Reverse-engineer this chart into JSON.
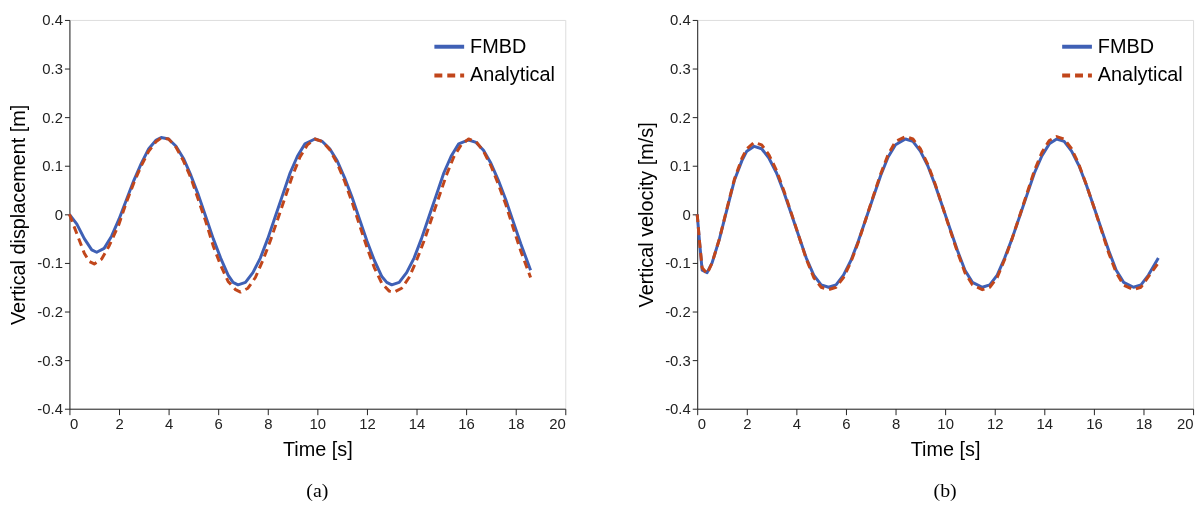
{
  "chart_data": [
    {
      "type": "line",
      "xlabel": "Time [s]",
      "ylabel": "Vertical displacement [m]",
      "xlim": [
        0,
        20
      ],
      "xticks": [
        0,
        2,
        4,
        6,
        8,
        10,
        12,
        14,
        16,
        18,
        20
      ],
      "ylim": [
        -0.4,
        0.4
      ],
      "yticks": [
        -0.4,
        -0.3,
        -0.2,
        -0.1,
        0,
        0.1,
        0.2,
        0.3,
        0.4
      ],
      "legend": "top right",
      "grid": false,
      "annotations": [
        "(a)"
      ],
      "series": [
        {
          "name": "FMBD",
          "color": "#3f60b5",
          "line_style": "solid",
          "x": [
            0,
            0.3,
            0.6,
            0.9,
            1.1,
            1.4,
            1.7,
            2.0,
            2.3,
            2.6,
            2.9,
            3.2,
            3.5,
            3.7,
            4.0,
            4.3,
            4.6,
            4.9,
            5.2,
            5.5,
            5.8,
            6.1,
            6.4,
            6.6,
            6.8,
            7.1,
            7.4,
            7.7,
            8.0,
            8.3,
            8.6,
            8.9,
            9.2,
            9.5,
            9.9,
            10.2,
            10.5,
            10.8,
            11.1,
            11.4,
            11.7,
            12.0,
            12.3,
            12.6,
            12.8,
            13.0,
            13.3,
            13.6,
            13.9,
            14.2,
            14.5,
            14.8,
            15.1,
            15.4,
            15.7,
            16.1,
            16.4,
            16.7,
            17.0,
            17.3,
            17.6,
            17.9,
            18.2,
            18.6
          ],
          "values": [
            0,
            -0.02,
            -0.05,
            -0.073,
            -0.078,
            -0.07,
            -0.045,
            -0.01,
            0.03,
            0.07,
            0.105,
            0.135,
            0.153,
            0.158,
            0.155,
            0.14,
            0.115,
            0.08,
            0.04,
            -0.005,
            -0.05,
            -0.09,
            -0.125,
            -0.14,
            -0.145,
            -0.14,
            -0.12,
            -0.09,
            -0.05,
            -0.005,
            0.04,
            0.085,
            0.12,
            0.145,
            0.155,
            0.15,
            0.135,
            0.11,
            0.075,
            0.035,
            -0.01,
            -0.055,
            -0.095,
            -0.128,
            -0.14,
            -0.145,
            -0.14,
            -0.12,
            -0.09,
            -0.05,
            -0.005,
            0.04,
            0.085,
            0.12,
            0.145,
            0.153,
            0.148,
            0.132,
            0.105,
            0.07,
            0.03,
            -0.015,
            -0.06,
            -0.115
          ]
        },
        {
          "name": "Analytical",
          "color": "#c1461b",
          "line_style": "dashed",
          "x": [
            0,
            0.3,
            0.6,
            0.8,
            1.0,
            1.3,
            1.6,
            2.0,
            2.3,
            2.6,
            2.9,
            3.2,
            3.5,
            3.7,
            4.0,
            4.3,
            4.6,
            4.9,
            5.2,
            5.5,
            5.8,
            6.1,
            6.4,
            6.7,
            6.9,
            7.2,
            7.5,
            7.8,
            8.1,
            8.4,
            8.7,
            9.0,
            9.3,
            9.6,
            9.9,
            10.2,
            10.5,
            10.8,
            11.1,
            11.4,
            11.7,
            12.0,
            12.3,
            12.6,
            12.9,
            13.1,
            13.4,
            13.7,
            14.0,
            14.3,
            14.6,
            14.9,
            15.2,
            15.5,
            15.8,
            16.1,
            16.4,
            16.7,
            17.0,
            17.3,
            17.6,
            17.9,
            18.2,
            18.6
          ],
          "values": [
            0,
            -0.04,
            -0.08,
            -0.097,
            -0.102,
            -0.092,
            -0.065,
            -0.02,
            0.025,
            0.065,
            0.1,
            0.13,
            0.15,
            0.157,
            0.155,
            0.138,
            0.11,
            0.075,
            0.03,
            -0.015,
            -0.065,
            -0.105,
            -0.138,
            -0.155,
            -0.16,
            -0.152,
            -0.13,
            -0.095,
            -0.055,
            -0.01,
            0.035,
            0.08,
            0.118,
            0.143,
            0.155,
            0.15,
            0.133,
            0.105,
            0.068,
            0.025,
            -0.022,
            -0.068,
            -0.11,
            -0.142,
            -0.158,
            -0.16,
            -0.152,
            -0.13,
            -0.095,
            -0.055,
            -0.01,
            0.035,
            0.08,
            0.118,
            0.143,
            0.155,
            0.15,
            0.13,
            0.1,
            0.062,
            0.02,
            -0.028,
            -0.075,
            -0.13
          ]
        }
      ]
    },
    {
      "type": "line",
      "xlabel": "Time [s]",
      "ylabel": "Vertical velocity [m/s]",
      "xlim": [
        0,
        20
      ],
      "xticks": [
        0,
        2,
        4,
        6,
        8,
        10,
        12,
        14,
        16,
        18,
        20
      ],
      "ylim": [
        -0.4,
        0.4
      ],
      "yticks": [
        -0.4,
        -0.3,
        -0.2,
        -0.1,
        0,
        0.1,
        0.2,
        0.3,
        0.4
      ],
      "legend": "top right",
      "grid": false,
      "annotations": [
        "(b)"
      ],
      "series": [
        {
          "name": "FMBD",
          "color": "#3f60b5",
          "line_style": "solid",
          "x": [
            0,
            0.1,
            0.2,
            0.4,
            0.6,
            0.9,
            1.2,
            1.5,
            1.8,
            2.0,
            2.3,
            2.6,
            2.9,
            3.2,
            3.5,
            3.8,
            4.1,
            4.4,
            4.7,
            5.0,
            5.3,
            5.6,
            5.9,
            6.2,
            6.5,
            6.8,
            7.1,
            7.4,
            7.7,
            8.0,
            8.4,
            8.7,
            9.0,
            9.3,
            9.6,
            9.9,
            10.2,
            10.5,
            10.8,
            11.1,
            11.5,
            11.8,
            12.1,
            12.4,
            12.7,
            13.0,
            13.3,
            13.6,
            13.9,
            14.2,
            14.5,
            14.8,
            15.1,
            15.4,
            15.7,
            16.0,
            16.3,
            16.6,
            16.9,
            17.2,
            17.6,
            17.9,
            18.2,
            18.6
          ],
          "values": [
            0,
            -0.06,
            -0.115,
            -0.12,
            -0.1,
            -0.05,
            0.01,
            0.07,
            0.11,
            0.13,
            0.14,
            0.135,
            0.115,
            0.085,
            0.045,
            0.0,
            -0.045,
            -0.09,
            -0.125,
            -0.145,
            -0.15,
            -0.145,
            -0.125,
            -0.095,
            -0.055,
            -0.01,
            0.035,
            0.08,
            0.118,
            0.143,
            0.155,
            0.15,
            0.13,
            0.1,
            0.06,
            0.015,
            -0.03,
            -0.075,
            -0.115,
            -0.14,
            -0.15,
            -0.145,
            -0.125,
            -0.09,
            -0.05,
            -0.005,
            0.04,
            0.085,
            0.12,
            0.145,
            0.155,
            0.15,
            0.13,
            0.1,
            0.06,
            0.015,
            -0.03,
            -0.075,
            -0.115,
            -0.14,
            -0.15,
            -0.145,
            -0.125,
            -0.09
          ]
        },
        {
          "name": "Analytical",
          "color": "#c1461b",
          "line_style": "dashed",
          "x": [
            0,
            0.1,
            0.2,
            0.4,
            0.6,
            0.9,
            1.2,
            1.5,
            1.8,
            2.0,
            2.3,
            2.6,
            2.9,
            3.2,
            3.5,
            3.8,
            4.1,
            4.4,
            4.7,
            5.0,
            5.3,
            5.6,
            5.9,
            6.2,
            6.5,
            6.8,
            7.1,
            7.4,
            7.7,
            8.0,
            8.4,
            8.7,
            9.0,
            9.3,
            9.6,
            9.9,
            10.2,
            10.5,
            10.8,
            11.1,
            11.5,
            11.8,
            12.1,
            12.4,
            12.7,
            13.0,
            13.3,
            13.6,
            13.9,
            14.2,
            14.5,
            14.8,
            15.1,
            15.4,
            15.7,
            16.0,
            16.3,
            16.6,
            16.9,
            17.2,
            17.6,
            17.9,
            18.2,
            18.6
          ],
          "values": [
            0,
            -0.06,
            -0.11,
            -0.122,
            -0.1,
            -0.05,
            0.012,
            0.072,
            0.115,
            0.135,
            0.148,
            0.143,
            0.122,
            0.09,
            0.048,
            0.002,
            -0.045,
            -0.092,
            -0.13,
            -0.15,
            -0.155,
            -0.15,
            -0.13,
            -0.098,
            -0.057,
            -0.01,
            0.037,
            0.083,
            0.123,
            0.15,
            0.16,
            0.155,
            0.135,
            0.103,
            0.062,
            0.015,
            -0.032,
            -0.078,
            -0.12,
            -0.145,
            -0.155,
            -0.15,
            -0.13,
            -0.093,
            -0.05,
            -0.004,
            0.043,
            0.09,
            0.127,
            0.152,
            0.16,
            0.155,
            0.135,
            0.102,
            0.06,
            0.015,
            -0.032,
            -0.08,
            -0.12,
            -0.146,
            -0.155,
            -0.15,
            -0.128,
            -0.1
          ]
        }
      ]
    }
  ]
}
